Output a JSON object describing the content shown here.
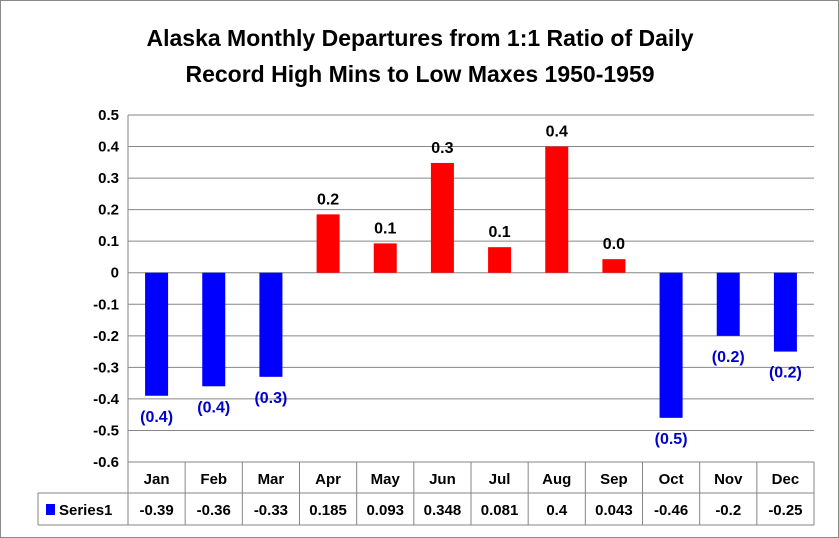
{
  "chart_data": {
    "type": "bar",
    "title_line1": "Alaska Monthly Departures from 1:1 Ratio of Daily",
    "title_line2": "Record High Mins to  Low Maxes 1950-1959",
    "categories": [
      "Jan",
      "Feb",
      "Mar",
      "Apr",
      "May",
      "Jun",
      "Jul",
      "Aug",
      "Sep",
      "Oct",
      "Nov",
      "Dec"
    ],
    "series": [
      {
        "name": "Series1",
        "values": [
          -0.39,
          -0.36,
          -0.33,
          0.185,
          0.093,
          0.348,
          0.081,
          0.4,
          0.043,
          -0.46,
          -0.2,
          -0.25
        ]
      }
    ],
    "table_values": [
      "-0.39",
      "-0.36",
      "-0.33",
      "0.185",
      "0.093",
      "0.348",
      "0.081",
      "0.4",
      "0.043",
      "-0.46",
      "-0.2",
      "-0.25"
    ],
    "data_labels": [
      "(0.4)",
      "(0.4)",
      "(0.3)",
      "0.2",
      "0.1",
      "0.3",
      "0.1",
      "0.4",
      "0.0",
      "(0.5)",
      "(0.2)",
      "(0.2)"
    ],
    "y_ticks": [
      "0.5",
      "0.4",
      "0.3",
      "0.2",
      "0.1",
      "0",
      "-0.1",
      "-0.2",
      "-0.3",
      "-0.4",
      "-0.5",
      "-0.6"
    ],
    "ylim": [
      -0.6,
      0.5
    ],
    "grid": true,
    "legend": "data-table",
    "colors": {
      "positive": "#ff0000",
      "negative": "#0000ff",
      "negative_label": "#0000cc",
      "grid": "#868686"
    }
  }
}
